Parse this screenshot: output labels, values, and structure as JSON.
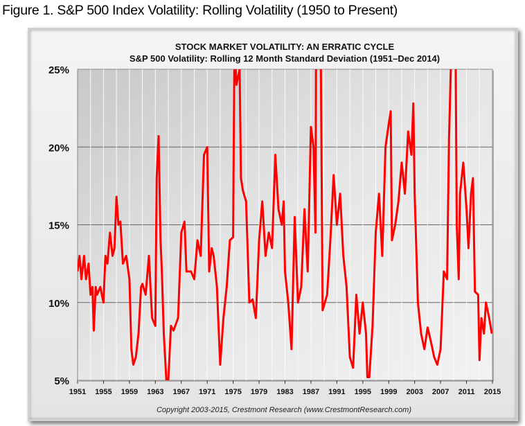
{
  "figure_title": "Figure 1.  S&P 500 Index Volatility: Rolling Volatility (1950 to Present)",
  "chart_data": {
    "type": "line",
    "title": "STOCK MARKET VOLATILITY: AN ERRATIC CYCLE",
    "subtitle": "S&P 500 Volatility: Rolling 12 Month Standard Deviation (1951–Dec 2014)",
    "xlabel": "",
    "ylabel": "",
    "xlim": [
      1951,
      2015
    ],
    "ylim": [
      5,
      25
    ],
    "x_ticks": [
      "1951",
      "1955",
      "1959",
      "1963",
      "1967",
      "1971",
      "1975",
      "1979",
      "1983",
      "1987",
      "1991",
      "1995",
      "1999",
      "2003",
      "2007",
      "2011",
      "2015"
    ],
    "y_ticks": [
      "5%",
      "10%",
      "15%",
      "20%",
      "25%"
    ],
    "y_tick_values": [
      5,
      10,
      15,
      20,
      25
    ],
    "line_color": "#ff0000",
    "copyright": "Copyright 2003-2015, Crestmont Research (www.CrestmontResearch.com)",
    "series": [
      {
        "name": "Rolling 12 Month Standard Deviation",
        "x": [
          1951,
          1951.3,
          1951.6,
          1952,
          1952.3,
          1952.7,
          1953,
          1953.3,
          1953.5,
          1953.8,
          1954,
          1954.5,
          1955,
          1955.3,
          1955.6,
          1956,
          1956.4,
          1956.7,
          1957,
          1957.3,
          1957.6,
          1958,
          1958.5,
          1959,
          1959.3,
          1959.6,
          1960,
          1960.4,
          1960.8,
          1961,
          1961.5,
          1962,
          1962.5,
          1963,
          1963.2,
          1963.5,
          1963.8,
          1964,
          1964.3,
          1964.7,
          1965,
          1965.4,
          1965.8,
          1966.5,
          1967,
          1967.5,
          1967.8,
          1968.5,
          1969,
          1969.5,
          1970,
          1970.5,
          1971,
          1971.3,
          1971.7,
          1972,
          1972.5,
          1973,
          1973.5,
          1974,
          1974.5,
          1975,
          1975.2,
          1975.5,
          1976,
          1976.2,
          1976.5,
          1977,
          1977.5,
          1978,
          1978.5,
          1979,
          1979.5,
          1980,
          1980.5,
          1981,
          1981.5,
          1982,
          1982.5,
          1982.8,
          1983,
          1983.5,
          1984,
          1984.5,
          1985,
          1985.5,
          1986,
          1986.5,
          1987,
          1987.4,
          1987.7,
          1987.8,
          1988.5,
          1988.8,
          1989.5,
          1990,
          1990.5,
          1991,
          1991.5,
          1992,
          1992.5,
          1993,
          1993.5,
          1994,
          1994.5,
          1995,
          1995.5,
          1995.7,
          1996,
          1996.5,
          1997,
          1997.5,
          1998,
          1998.5,
          1999,
          1999.3,
          1999.5,
          2000,
          2000.5,
          2001,
          2001.5,
          2002,
          2002.5,
          2002.8,
          2003,
          2003.5,
          2004,
          2004.5,
          2005,
          2005.5,
          2006,
          2006.5,
          2007,
          2007.5,
          2008,
          2008.3,
          2008.7,
          2009.3,
          2009.5,
          2009.8,
          2010,
          2010.5,
          2011,
          2011.3,
          2011.7,
          2012,
          2012.3,
          2012.8,
          2013,
          2013.3,
          2013.7,
          2014,
          2014.5,
          2014.9
        ],
        "values": [
          12,
          13,
          11.5,
          13,
          11.5,
          12.5,
          10.5,
          11,
          8.2,
          11,
          10.5,
          11,
          10,
          13,
          12.5,
          14.5,
          13,
          13.5,
          16.8,
          15,
          15.2,
          12.5,
          13,
          11.5,
          7,
          6,
          6.5,
          8,
          11,
          11.2,
          10.5,
          13,
          9,
          8.5,
          18,
          20.7,
          14,
          12,
          8,
          5,
          5,
          8.5,
          8.2,
          9,
          14.5,
          15.2,
          12,
          12,
          11.5,
          14,
          13,
          19.5,
          20,
          12,
          13.5,
          13,
          11,
          6,
          9,
          11,
          14,
          14.2,
          27,
          24,
          25,
          18,
          17.2,
          16.5,
          10,
          10.2,
          9,
          14,
          16.5,
          13,
          14.5,
          13.5,
          19.5,
          16,
          15,
          16.5,
          12,
          10,
          7,
          15.5,
          10,
          11,
          16,
          12,
          21.3,
          20,
          14.5,
          27,
          27,
          9.5,
          10.5,
          14,
          18.2,
          15,
          17,
          13,
          11,
          6.5,
          5.8,
          10.5,
          8,
          10,
          8,
          5.2,
          5.2,
          8.5,
          14.5,
          17,
          13,
          20,
          21.5,
          22.3,
          14,
          15,
          16.5,
          19,
          17,
          21,
          19.5,
          22.8,
          17,
          10,
          8,
          7,
          8.4,
          7.5,
          6.5,
          6,
          7,
          12,
          11.5,
          20.5,
          27,
          27,
          15,
          11.5,
          17,
          19,
          16,
          13.5,
          17,
          18,
          10.7,
          10.5,
          6.3,
          9,
          8,
          10,
          9,
          8
        ]
      }
    ]
  }
}
